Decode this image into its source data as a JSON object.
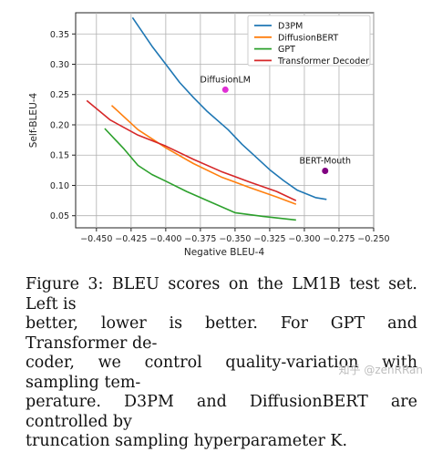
{
  "chart_data": {
    "type": "line",
    "xlabel": "Negative BLEU-4",
    "ylabel": "Self-BLEU-4",
    "xlim": [
      -0.465,
      -0.25
    ],
    "ylim": [
      0.03,
      0.385
    ],
    "xticks": [
      -0.45,
      -0.425,
      -0.4,
      -0.375,
      -0.35,
      -0.325,
      -0.3,
      -0.275,
      -0.25
    ],
    "xtick_labels": [
      "−0.450",
      "−0.425",
      "−0.400",
      "−0.375",
      "−0.350",
      "−0.325",
      "−0.300",
      "−0.275",
      "−0.250"
    ],
    "yticks": [
      0.05,
      0.1,
      0.15,
      0.2,
      0.25,
      0.3,
      0.35
    ],
    "ytick_labels": [
      "0.05",
      "0.10",
      "0.15",
      "0.20",
      "0.25",
      "0.30",
      "0.35"
    ],
    "legend_position": "top-right",
    "grid": true,
    "series": [
      {
        "name": "D3PM",
        "color": "#1f77b4",
        "x": [
          -0.424,
          -0.41,
          -0.4,
          -0.39,
          -0.38,
          -0.37,
          -0.355,
          -0.345,
          -0.335,
          -0.325,
          -0.315,
          -0.305,
          -0.292,
          -0.284
        ],
        "y": [
          0.377,
          0.33,
          0.3,
          0.27,
          0.245,
          0.222,
          0.192,
          0.168,
          0.147,
          0.126,
          0.108,
          0.092,
          0.08,
          0.077
        ]
      },
      {
        "name": "DiffusionBERT",
        "color": "#ff7f0e",
        "x": [
          -0.439,
          -0.42,
          -0.4,
          -0.38,
          -0.36,
          -0.34,
          -0.32,
          -0.306
        ],
        "y": [
          0.232,
          0.192,
          0.162,
          0.136,
          0.114,
          0.097,
          0.081,
          0.069
        ]
      },
      {
        "name": "GPT",
        "color": "#2ca02c",
        "x": [
          -0.444,
          -0.43,
          -0.42,
          -0.41,
          -0.4,
          -0.385,
          -0.37,
          -0.35,
          -0.33,
          -0.306
        ],
        "y": [
          0.194,
          0.16,
          0.133,
          0.118,
          0.107,
          0.09,
          0.075,
          0.055,
          0.049,
          0.043
        ]
      },
      {
        "name": "Transformer Decoder",
        "color": "#d62728",
        "x": [
          -0.457,
          -0.44,
          -0.42,
          -0.4,
          -0.38,
          -0.36,
          -0.34,
          -0.32,
          -0.306
        ],
        "y": [
          0.24,
          0.208,
          0.183,
          0.165,
          0.143,
          0.123,
          0.106,
          0.09,
          0.075
        ]
      }
    ],
    "points": [
      {
        "label": "DiffusionLM",
        "x": -0.357,
        "y": 0.258,
        "color": "#e02fd4"
      },
      {
        "label": "BERT-Mouth",
        "x": -0.285,
        "y": 0.124,
        "color": "#800080"
      }
    ]
  },
  "caption": {
    "lines": [
      "Figure 3:  BLEU scores on the LM1B test set.  Left is",
      "better, lower is better.  For GPT and Transformer de-",
      "coder, we control quality-variation with sampling tem-",
      "perature. D3PM and DiffusionBERT are controlled by",
      "truncation sampling hyperparameter K."
    ]
  },
  "watermark": "知乎 @zenRRan"
}
